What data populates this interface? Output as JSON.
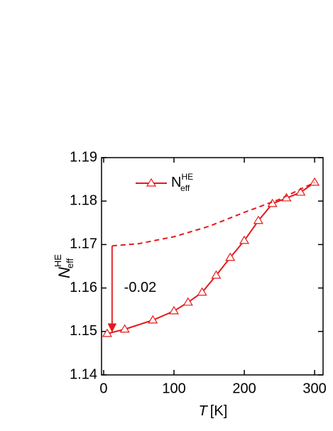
{
  "chart_data": {
    "type": "line",
    "xlabel": {
      "var": "T",
      "unit": "[K]"
    },
    "ylabel": {
      "base": "N",
      "sub": "eff",
      "sup": "HE"
    },
    "xlim": [
      -3,
      312
    ],
    "ylim": [
      1.14,
      1.19
    ],
    "xticks": [
      0,
      100,
      200,
      300
    ],
    "yticks": [
      1.14,
      1.15,
      1.16,
      1.17,
      1.18,
      1.19
    ],
    "series": [
      {
        "name": "N",
        "name_sub": "eff",
        "name_sup": "HE",
        "color": "#e41a1c",
        "marker": "triangle",
        "dash": false,
        "x": [
          5,
          30,
          70,
          100,
          120,
          140,
          160,
          180,
          200,
          220,
          240,
          260,
          280,
          300
        ],
        "values": [
          1.1495,
          1.1505,
          1.1526,
          1.1547,
          1.1567,
          1.159,
          1.1629,
          1.167,
          1.1709,
          1.1755,
          1.1794,
          1.1807,
          1.182,
          1.1843
        ]
      },
      {
        "color": "#e41a1c",
        "marker": "none",
        "dash": true,
        "x": [
          12,
          50,
          100,
          150,
          200,
          250,
          300
        ],
        "values": [
          1.1697,
          1.1702,
          1.1718,
          1.1742,
          1.1774,
          1.1804,
          1.1843
        ]
      }
    ],
    "arrow": {
      "x": 12,
      "from": 1.1697,
      "to": 1.15,
      "color": "#e41a1c"
    },
    "annotation": {
      "text": "-0.02",
      "x": 52,
      "y": 1.16,
      "color": "#e41a1c"
    },
    "legend": "upper left"
  }
}
